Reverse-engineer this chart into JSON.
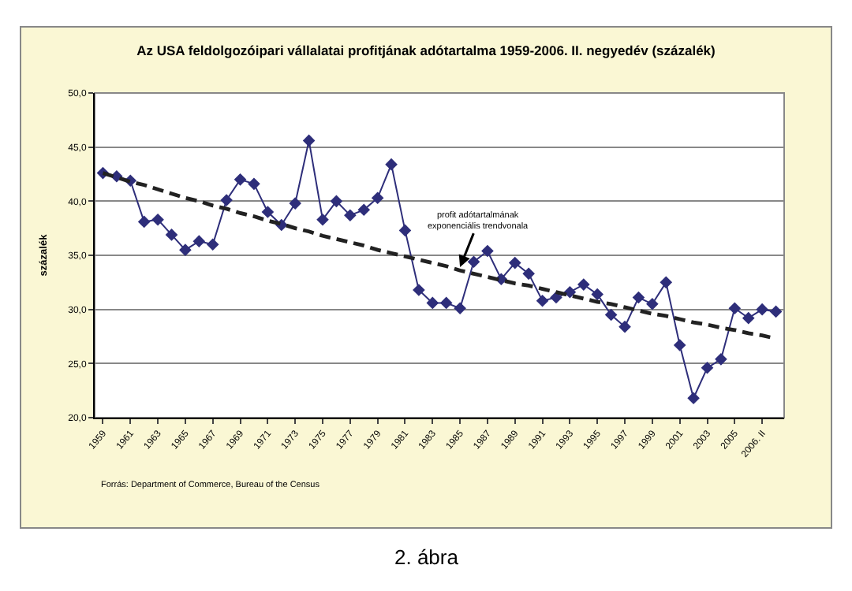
{
  "chart_data": {
    "type": "line",
    "title": "Az USA feldolgozóipari vállalatai profitjának adótartalma 1959-2006. II. negyedév (százalék)",
    "ylabel": "százalék",
    "categories": [
      "1959",
      null,
      "1961",
      null,
      "1963",
      null,
      "1965",
      null,
      "1967",
      null,
      "1969",
      null,
      "1971",
      null,
      "1973",
      null,
      "1975",
      null,
      "1977",
      null,
      "1979",
      null,
      "1981",
      null,
      "1983",
      null,
      "1985",
      null,
      "1987",
      null,
      "1989",
      null,
      "1991",
      null,
      "1993",
      null,
      "1995",
      null,
      "1997",
      null,
      "1999",
      null,
      "2001",
      null,
      "2003",
      null,
      "2005",
      null,
      "2006. II",
      null
    ],
    "series": [
      {
        "color": "#2e2e7a",
        "marker": "diamond",
        "line_style": "solid",
        "values": [
          42.6,
          42.3,
          41.9,
          38.1,
          38.3,
          36.9,
          35.5,
          36.3,
          36.0,
          40.1,
          42.0,
          41.6,
          39.0,
          37.8,
          39.8,
          45.6,
          38.3,
          40.0,
          38.7,
          39.2,
          40.3,
          43.4,
          37.3,
          31.8,
          30.6,
          30.6,
          30.1,
          34.4,
          35.4,
          32.8,
          34.3,
          33.3,
          30.8,
          31.1,
          31.6,
          32.3,
          31.4,
          29.5,
          28.4,
          31.1,
          30.5,
          32.5,
          26.7,
          21.8,
          24.6,
          25.4,
          30.1,
          29.2,
          30.0,
          29.8
        ]
      },
      {
        "type": "line",
        "color": "#222222",
        "marker": "none",
        "line_style": "dashed",
        "values": [
          42.6,
          42.2,
          41.8,
          41.5,
          41.1,
          40.7,
          40.3,
          40.0,
          39.6,
          39.3,
          38.9,
          38.6,
          38.2,
          37.9,
          37.5,
          37.2,
          36.8,
          36.5,
          36.2,
          35.9,
          35.5,
          35.2,
          34.9,
          34.6,
          34.3,
          34.0,
          33.6,
          33.3,
          33.0,
          32.7,
          32.4,
          32.2,
          31.9,
          31.6,
          31.3,
          31.0,
          30.7,
          30.5,
          30.2,
          29.9,
          29.6,
          29.4,
          29.1,
          28.8,
          28.6,
          28.3,
          28.1,
          27.8,
          27.6,
          27.3
        ]
      }
    ],
    "ylim": [
      20,
      50
    ],
    "yticks": [
      {
        "value": 20,
        "label": "20,0"
      },
      {
        "value": 25,
        "label": "25,0"
      },
      {
        "value": 30,
        "label": "30,0"
      },
      {
        "value": 35,
        "label": "35,0"
      },
      {
        "value": 40,
        "label": "40,0"
      },
      {
        "value": 45,
        "label": "45,0"
      },
      {
        "value": 50,
        "label": "50,0"
      }
    ],
    "grid": "y",
    "annotations": [
      {
        "text": "profit adótartalmának\nexponenciális trendvonala",
        "x": "1985",
        "y": 33.9
      },
      "Forrás: Department of Commerce, Bureau of the Census",
      "2. ábra"
    ]
  }
}
